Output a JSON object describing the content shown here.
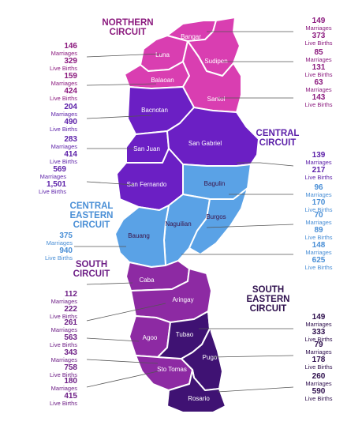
{
  "colors": {
    "northern": "#d93eb1",
    "central": "#6b1fc4",
    "central_eastern": "#5aa2e6",
    "south": "#8d2aa3",
    "south_eastern": "#3f1273"
  },
  "circuits": [
    {
      "id": "northern",
      "lines": [
        "NORTHERN",
        "CIRCUIT"
      ],
      "color": "#8b1a7e"
    },
    {
      "id": "central",
      "lines": [
        "CENTRAL",
        "CIRCUIT"
      ],
      "color": "#5b1fa8"
    },
    {
      "id": "central_eastern",
      "lines": [
        "CENTRAL",
        "EASTERN",
        "CIRCUIT"
      ],
      "color": "#4a8fd6"
    },
    {
      "id": "south",
      "lines": [
        "SOUTH",
        "CIRCUIT"
      ],
      "color": "#6e1f86"
    },
    {
      "id": "south_eastern",
      "lines": [
        "SOUTH",
        "EASTERN",
        "CIRCUIT"
      ],
      "color": "#2e0f4d"
    }
  ],
  "municipalities": [
    {
      "name": "Bangar",
      "circuit": "northern",
      "marriages": "149",
      "marriages_label": "Marriages",
      "births": "373",
      "births_label": "Live Births"
    },
    {
      "name": "Luna",
      "circuit": "northern",
      "marriages": "146",
      "marriages_label": "Marriages",
      "births": "329",
      "births_label": "Live Births"
    },
    {
      "name": "Sudipen",
      "circuit": "northern",
      "marriages": "85",
      "marriages_label": "Marriages",
      "births": "131",
      "births_label": "Live Births"
    },
    {
      "name": "Balaoan",
      "circuit": "northern",
      "marriages": "159",
      "marriages_label": "Marriages",
      "births": "424",
      "births_label": "Live Births"
    },
    {
      "name": "Santol",
      "circuit": "northern",
      "marriages": "63",
      "marriages_label": "Marriages",
      "births": "143",
      "births_label": "Live Births"
    },
    {
      "name": "Bacnotan",
      "circuit": "central",
      "marriages": "204",
      "marriages_label": "Marriages",
      "births": "490",
      "births_label": "Live Births"
    },
    {
      "name": "San Juan",
      "circuit": "central",
      "marriages": "283",
      "marriages_label": "Marriages",
      "births": "414",
      "births_label": "Live Births"
    },
    {
      "name": "San Gabriel",
      "circuit": "central",
      "marriages": "139",
      "marriages_label": "Marriages",
      "births": "217",
      "births_label": "Live Births"
    },
    {
      "name": "San Fernando",
      "circuit": "central",
      "marriages": "569",
      "marriages_label": "Marriages",
      "births": "1,501",
      "births_label": "Live Births"
    },
    {
      "name": "Bagulin",
      "circuit": "central_eastern",
      "marriages": "96",
      "marriages_label": "Marriages",
      "births": "170",
      "births_label": "Live Births"
    },
    {
      "name": "Burgos",
      "circuit": "central_eastern",
      "marriages": "70",
      "marriages_label": "Marriages",
      "births": "89",
      "births_label": "Live Births"
    },
    {
      "name": "Bauang",
      "circuit": "central_eastern",
      "marriages": "375",
      "marriages_label": "Marriages",
      "births": "940",
      "births_label": "Live Births"
    },
    {
      "name": "Naguilian",
      "circuit": "central_eastern",
      "marriages": "148",
      "marriages_label": "Marriages",
      "births": "625",
      "births_label": "Live Births"
    },
    {
      "name": "Caba",
      "circuit": "south",
      "marriages": "112",
      "marriages_label": "Marriages",
      "births": "222",
      "births_label": "Live Births"
    },
    {
      "name": "Aringay",
      "circuit": "south",
      "marriages": "261",
      "marriages_label": "Marriages",
      "births": "563",
      "births_label": "Live Births"
    },
    {
      "name": "Agoo",
      "circuit": "south",
      "marriages": "343",
      "marriages_label": "Marriages",
      "births": "758",
      "births_label": "Live Births"
    },
    {
      "name": "Sto Tomas",
      "circuit": "south",
      "marriages": "180",
      "marriages_label": "Marriages",
      "births": "415",
      "births_label": "Live Births"
    },
    {
      "name": "Tubao",
      "circuit": "south_eastern",
      "marriages": "149",
      "marriages_label": "Marriages",
      "births": "333",
      "births_label": "Live Births"
    },
    {
      "name": "Pugo",
      "circuit": "south_eastern",
      "marriages": "79",
      "marriages_label": "Marriages",
      "births": "178",
      "births_label": "Live Births"
    },
    {
      "name": "Rosario",
      "circuit": "south_eastern",
      "marriages": "260",
      "marriages_label": "Marriages",
      "births": "590",
      "births_label": "Live Births"
    }
  ]
}
